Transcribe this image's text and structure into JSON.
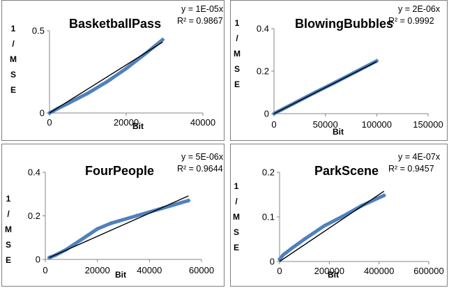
{
  "chart_data": [
    {
      "type": "scatter",
      "title": "BasketballPass",
      "xlabel": "Bit",
      "ylabel": "1/MSE",
      "xlim": [
        0,
        40000
      ],
      "ylim": [
        0,
        0.5
      ],
      "xticks": [
        "0",
        "20000",
        "40000"
      ],
      "yticks": [
        "0",
        "0.5"
      ],
      "trendline": {
        "equation": "y = 1E-05x",
        "r2": "R² = 0.9867",
        "slope": 1.46e-05
      },
      "series": [
        {
          "x": [
            0,
            1000,
            2000,
            5000,
            10000,
            15000,
            20000,
            25000,
            29500
          ],
          "y": [
            0,
            0.012,
            0.025,
            0.06,
            0.12,
            0.19,
            0.27,
            0.36,
            0.445
          ]
        }
      ]
    },
    {
      "type": "scatter",
      "title": "BlowingBubbles",
      "xlabel": "Bit",
      "ylabel": "1/MSE",
      "xlim": [
        0,
        150000
      ],
      "ylim": [
        0,
        0.4
      ],
      "xticks": [
        "0",
        "50000",
        "100000",
        "150000"
      ],
      "yticks": [
        "0",
        "0.2",
        "0.4"
      ],
      "trendline": {
        "equation": "y = 2E-06x",
        "r2": "R² = 0.9992",
        "slope": 2.45e-06
      },
      "series": [
        {
          "x": [
            0,
            3000,
            8000,
            20000,
            40000,
            60000,
            80000,
            100000
          ],
          "y": [
            0,
            0.008,
            0.02,
            0.05,
            0.1,
            0.148,
            0.198,
            0.248
          ]
        }
      ]
    },
    {
      "type": "scatter",
      "title": "FourPeople",
      "xlabel": "Bit",
      "ylabel": "1/MSE",
      "xlim": [
        0,
        60000
      ],
      "ylim": [
        0,
        0.4
      ],
      "xticks": [
        "0",
        "20000",
        "40000",
        "60000"
      ],
      "yticks": [
        "0",
        "0.2",
        "0.4"
      ],
      "trendline": {
        "equation": "y = 5E-06x",
        "r2": "R² = 0.9644",
        "slope": 5.3e-06
      },
      "series": [
        {
          "x": [
            1500,
            4000,
            8000,
            15000,
            20000,
            25000,
            35000,
            45000,
            55000
          ],
          "y": [
            0.008,
            0.02,
            0.045,
            0.1,
            0.14,
            0.165,
            0.2,
            0.235,
            0.27
          ]
        }
      ]
    },
    {
      "type": "scatter",
      "title": "ParkScene",
      "xlabel": "Bit",
      "ylabel": "1/MSE",
      "xlim": [
        0,
        600000
      ],
      "ylim": [
        0,
        0.2
      ],
      "xticks": [
        "0",
        "200000",
        "400000",
        "600000"
      ],
      "yticks": [
        "0",
        "0.1",
        "0.2"
      ],
      "trendline": {
        "equation": "y = 4E-07x",
        "r2": "R² = 0.9457",
        "slope": 3.75e-07
      },
      "series": [
        {
          "x": [
            0,
            15000,
            50000,
            100000,
            180000,
            250000,
            330000,
            420000
          ],
          "y": [
            0.005,
            0.015,
            0.03,
            0.05,
            0.08,
            0.1,
            0.125,
            0.148
          ]
        }
      ]
    }
  ]
}
